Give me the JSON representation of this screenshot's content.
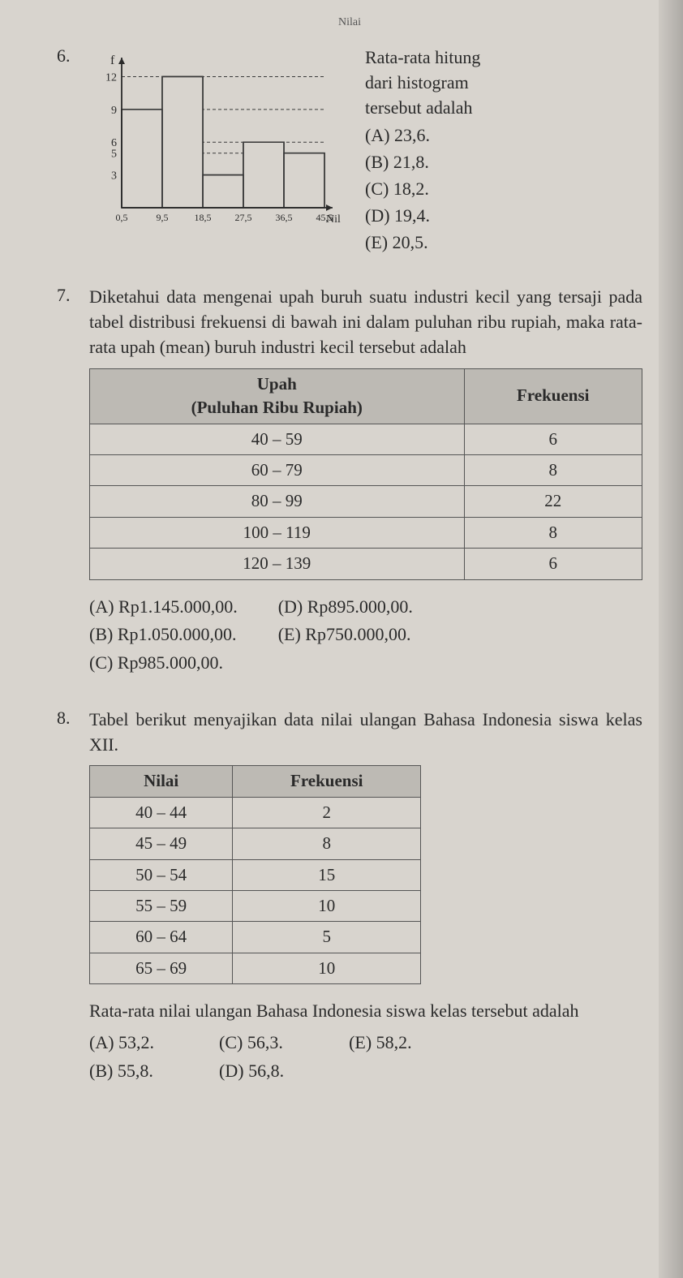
{
  "header": "Nilai",
  "q6": {
    "number": "6.",
    "prompt_lines": [
      "Rata-rata hitung",
      "dari histogram",
      "tersebut adalah"
    ],
    "options": {
      "A": "(A) 23,6.",
      "B": "(B) 21,8.",
      "C": "(C) 18,2.",
      "D": "(D) 19,4.",
      "E": "(E) 20,5."
    },
    "histogram": {
      "type": "histogram",
      "y_label": "f",
      "x_label": "Nilai",
      "y_ticks": [
        3,
        5,
        6,
        9,
        12
      ],
      "x_ticks": [
        "0,5",
        "9,5",
        "18,5",
        "27,5",
        "36,5",
        "45,5"
      ],
      "bars": [
        9,
        12,
        3,
        6,
        5
      ],
      "bar_color": "#d4d0c9",
      "border_color": "#3a3a3a",
      "grid_dash": "4,3",
      "ylim": [
        0,
        13
      ],
      "axis_color": "#2a2a2a"
    }
  },
  "q7": {
    "number": "7.",
    "prompt": "Diketahui data mengenai upah buruh suatu industri kecil yang tersaji pada tabel distribusi frekuensi di bawah ini dalam puluhan ribu rupiah, maka rata-rata upah (mean) buruh industri kecil tersebut adalah",
    "table": {
      "type": "table",
      "header_bg": "#bdbab4",
      "border_color": "#555555",
      "columns": [
        "Upah\n(Puluhan Ribu Rupiah)",
        "Frekuensi"
      ],
      "col0_label_line1": "Upah",
      "col0_label_line2": "(Puluhan Ribu Rupiah)",
      "col1_label": "Frekuensi",
      "rows": [
        [
          "40 – 59",
          "6"
        ],
        [
          "60 – 79",
          "8"
        ],
        [
          "80 – 99",
          "22"
        ],
        [
          "100 – 119",
          "8"
        ],
        [
          "120 – 139",
          "6"
        ]
      ]
    },
    "options": {
      "A": "(A) Rp1.145.000,00.",
      "B": "(B) Rp1.050.000,00.",
      "C": "(C) Rp985.000,00.",
      "D": "(D) Rp895.000,00.",
      "E": "(E) Rp750.000,00."
    }
  },
  "q8": {
    "number": "8.",
    "prompt": "Tabel berikut menyajikan data nilai ulangan Bahasa Indonesia siswa kelas XII.",
    "table": {
      "type": "table",
      "header_bg": "#bdbab4",
      "border_color": "#555555",
      "col0_label": "Nilai",
      "col1_label": "Frekuensi",
      "rows": [
        [
          "40 – 44",
          "2"
        ],
        [
          "45 – 49",
          "8"
        ],
        [
          "50 – 54",
          "15"
        ],
        [
          "55 – 59",
          "10"
        ],
        [
          "60 – 64",
          "5"
        ],
        [
          "65 – 69",
          "10"
        ]
      ]
    },
    "post_text": "Rata-rata nilai ulangan Bahasa Indonesia siswa kelas tersebut adalah",
    "options": {
      "A": "(A) 53,2.",
      "B": "(B) 55,8.",
      "C": "(C) 56,3.",
      "D": "(D) 56,8.",
      "E": "(E) 58,2."
    }
  }
}
